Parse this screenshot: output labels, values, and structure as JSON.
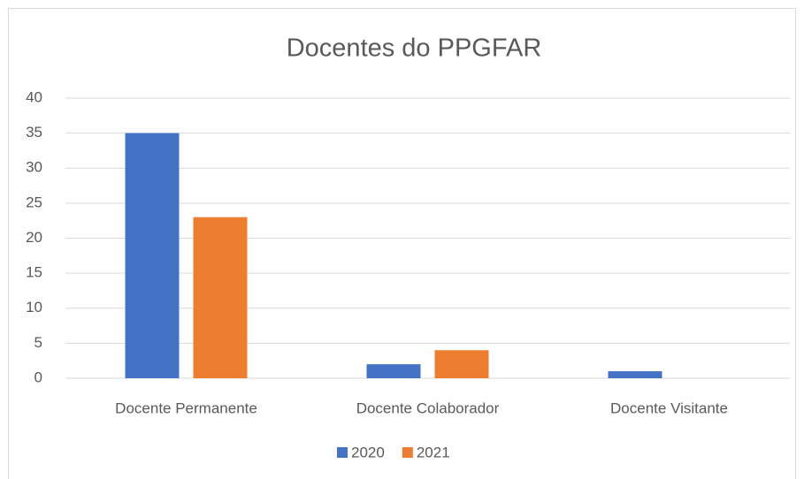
{
  "chart_data": {
    "type": "bar",
    "title": "Docentes do PPGFAR",
    "categories": [
      "Docente Permanente",
      "Docente Colaborador",
      "Docente Visitante"
    ],
    "series": [
      {
        "name": "2020",
        "color": "#4472c4",
        "values": [
          35,
          2,
          1
        ]
      },
      {
        "name": "2021",
        "color": "#ed7d31",
        "values": [
          23,
          4,
          0
        ]
      }
    ],
    "ylim": [
      0,
      40
    ],
    "yticks": [
      0,
      5,
      10,
      15,
      20,
      25,
      30,
      35,
      40
    ],
    "grid": true,
    "legend": "bottom"
  }
}
